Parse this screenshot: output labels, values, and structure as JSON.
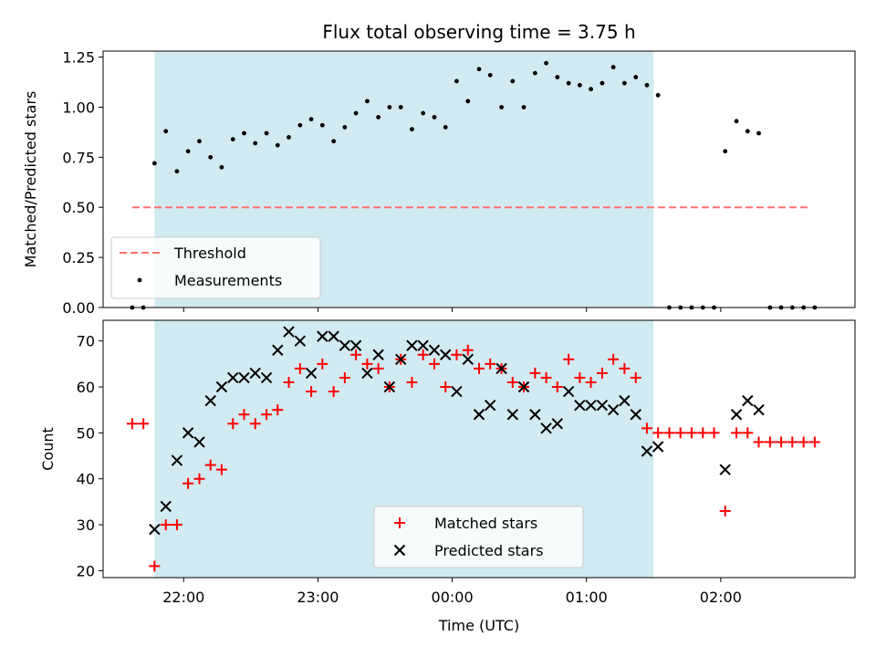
{
  "chart_data": [
    {
      "type": "scatter",
      "title": "Flux total observing time = 3.75 h",
      "xlabel": "",
      "ylabel": "Matched/Predicted stars",
      "ylim": [
        0,
        1.28
      ],
      "yticks": [
        "0.00",
        "0.25",
        "0.50",
        "0.75",
        "1.00",
        "1.25"
      ],
      "ytick_values": [
        0,
        0.25,
        0.5,
        0.75,
        1.0,
        1.25
      ],
      "xlim_hours": [
        21.4,
        27.0
      ],
      "shaded_span_hours": [
        21.783,
        25.5
      ],
      "shade_color": "#add8e6",
      "threshold": {
        "name": "Threshold",
        "value": 0.5,
        "x_range_hours": [
          21.617,
          26.667
        ],
        "color": "#ff7070"
      },
      "series": [
        {
          "name": "Measurements",
          "color": "#000000",
          "x_hours": [
            21.617,
            21.7,
            21.783,
            21.867,
            21.95,
            22.033,
            22.117,
            22.2,
            22.283,
            22.367,
            22.45,
            22.533,
            22.617,
            22.7,
            22.783,
            22.867,
            22.95,
            23.033,
            23.117,
            23.2,
            23.283,
            23.367,
            23.45,
            23.533,
            23.617,
            23.7,
            23.783,
            23.867,
            23.95,
            24.033,
            24.117,
            24.2,
            24.283,
            24.367,
            24.45,
            24.533,
            24.617,
            24.7,
            24.783,
            24.867,
            24.95,
            25.033,
            25.117,
            25.2,
            25.283,
            25.367,
            25.45,
            25.533,
            25.617,
            25.7,
            25.783,
            25.867,
            25.95,
            26.033,
            26.117,
            26.2,
            26.283,
            26.367,
            26.45,
            26.533,
            26.617,
            26.7
          ],
          "y": [
            0.0,
            0.0,
            0.72,
            0.88,
            0.68,
            0.78,
            0.83,
            0.75,
            0.7,
            0.84,
            0.87,
            0.82,
            0.87,
            0.81,
            0.85,
            0.91,
            0.94,
            0.91,
            0.83,
            0.9,
            0.97,
            1.03,
            0.95,
            1.0,
            1.0,
            0.89,
            0.97,
            0.95,
            0.9,
            1.13,
            1.03,
            1.19,
            1.16,
            1.0,
            1.13,
            1.0,
            1.17,
            1.22,
            1.15,
            1.12,
            1.11,
            1.09,
            1.12,
            1.2,
            1.12,
            1.15,
            1.11,
            1.06,
            0.0,
            0.0,
            0.0,
            0.0,
            0.0,
            0.78,
            0.93,
            0.88,
            0.87,
            0.0,
            0.0,
            0.0,
            0.0,
            0.0
          ]
        }
      ]
    },
    {
      "type": "scatter",
      "title": "",
      "xlabel": "Time (UTC)",
      "ylabel": "Count",
      "ylim": [
        18.5,
        74.5
      ],
      "yticks": [
        "20",
        "30",
        "40",
        "50",
        "60",
        "70"
      ],
      "ytick_values": [
        20,
        30,
        40,
        50,
        60,
        70
      ],
      "xticks": [
        "22:00",
        "23:00",
        "00:00",
        "01:00",
        "02:00"
      ],
      "xtick_values_hours": [
        22,
        23,
        24,
        25,
        26
      ],
      "xlim_hours": [
        21.4,
        27.0
      ],
      "shaded_span_hours": [
        21.783,
        25.5
      ],
      "shade_color": "#add8e6",
      "series": [
        {
          "name": "Matched stars",
          "marker": "+",
          "color": "#ff0000",
          "x_hours": [
            21.617,
            21.7,
            21.783,
            21.867,
            21.95,
            22.033,
            22.117,
            22.2,
            22.283,
            22.367,
            22.45,
            22.533,
            22.617,
            22.7,
            22.783,
            22.867,
            22.95,
            23.033,
            23.117,
            23.2,
            23.283,
            23.367,
            23.45,
            23.533,
            23.617,
            23.7,
            23.783,
            23.867,
            23.95,
            24.033,
            24.117,
            24.2,
            24.283,
            24.367,
            24.45,
            24.533,
            24.617,
            24.7,
            24.783,
            24.867,
            24.95,
            25.033,
            25.117,
            25.2,
            25.283,
            25.367,
            25.45,
            25.533,
            25.617,
            25.7,
            25.783,
            25.867,
            25.95,
            26.033,
            26.117,
            26.2,
            26.283,
            26.367,
            26.45,
            26.533,
            26.617,
            26.7
          ],
          "y": [
            52,
            52,
            21,
            30,
            30,
            39,
            40,
            43,
            42,
            52,
            54,
            52,
            54,
            55,
            61,
            64,
            59,
            65,
            59,
            62,
            67,
            65,
            64,
            60,
            66,
            61,
            67,
            65,
            60,
            67,
            68,
            64,
            65,
            64,
            61,
            60,
            63,
            62,
            60,
            66,
            62,
            61,
            63,
            66,
            64,
            62,
            51,
            50,
            50,
            50,
            50,
            50,
            50,
            33,
            50,
            50,
            48,
            48,
            48,
            48,
            48,
            48
          ]
        },
        {
          "name": "Predicted stars",
          "marker": "x",
          "color": "#000000",
          "x_hours": [
            21.783,
            21.867,
            21.95,
            22.033,
            22.117,
            22.2,
            22.283,
            22.367,
            22.45,
            22.533,
            22.617,
            22.7,
            22.783,
            22.867,
            22.95,
            23.033,
            23.117,
            23.2,
            23.283,
            23.367,
            23.45,
            23.533,
            23.617,
            23.7,
            23.783,
            23.867,
            23.95,
            24.033,
            24.117,
            24.2,
            24.283,
            24.367,
            24.45,
            24.533,
            24.617,
            24.7,
            24.783,
            24.867,
            24.95,
            25.033,
            25.117,
            25.2,
            25.283,
            25.367,
            25.45,
            25.533,
            26.033,
            26.117,
            26.2,
            26.283
          ],
          "y": [
            29,
            34,
            44,
            50,
            48,
            57,
            60,
            62,
            62,
            63,
            62,
            68,
            72,
            70,
            63,
            71,
            71,
            69,
            69,
            63,
            67,
            60,
            66,
            69,
            69,
            68,
            67,
            59,
            66,
            54,
            56,
            64,
            54,
            60,
            54,
            51,
            52,
            59,
            56,
            56,
            56,
            55,
            57,
            54,
            46,
            47,
            42,
            54,
            57,
            55
          ]
        }
      ]
    }
  ]
}
